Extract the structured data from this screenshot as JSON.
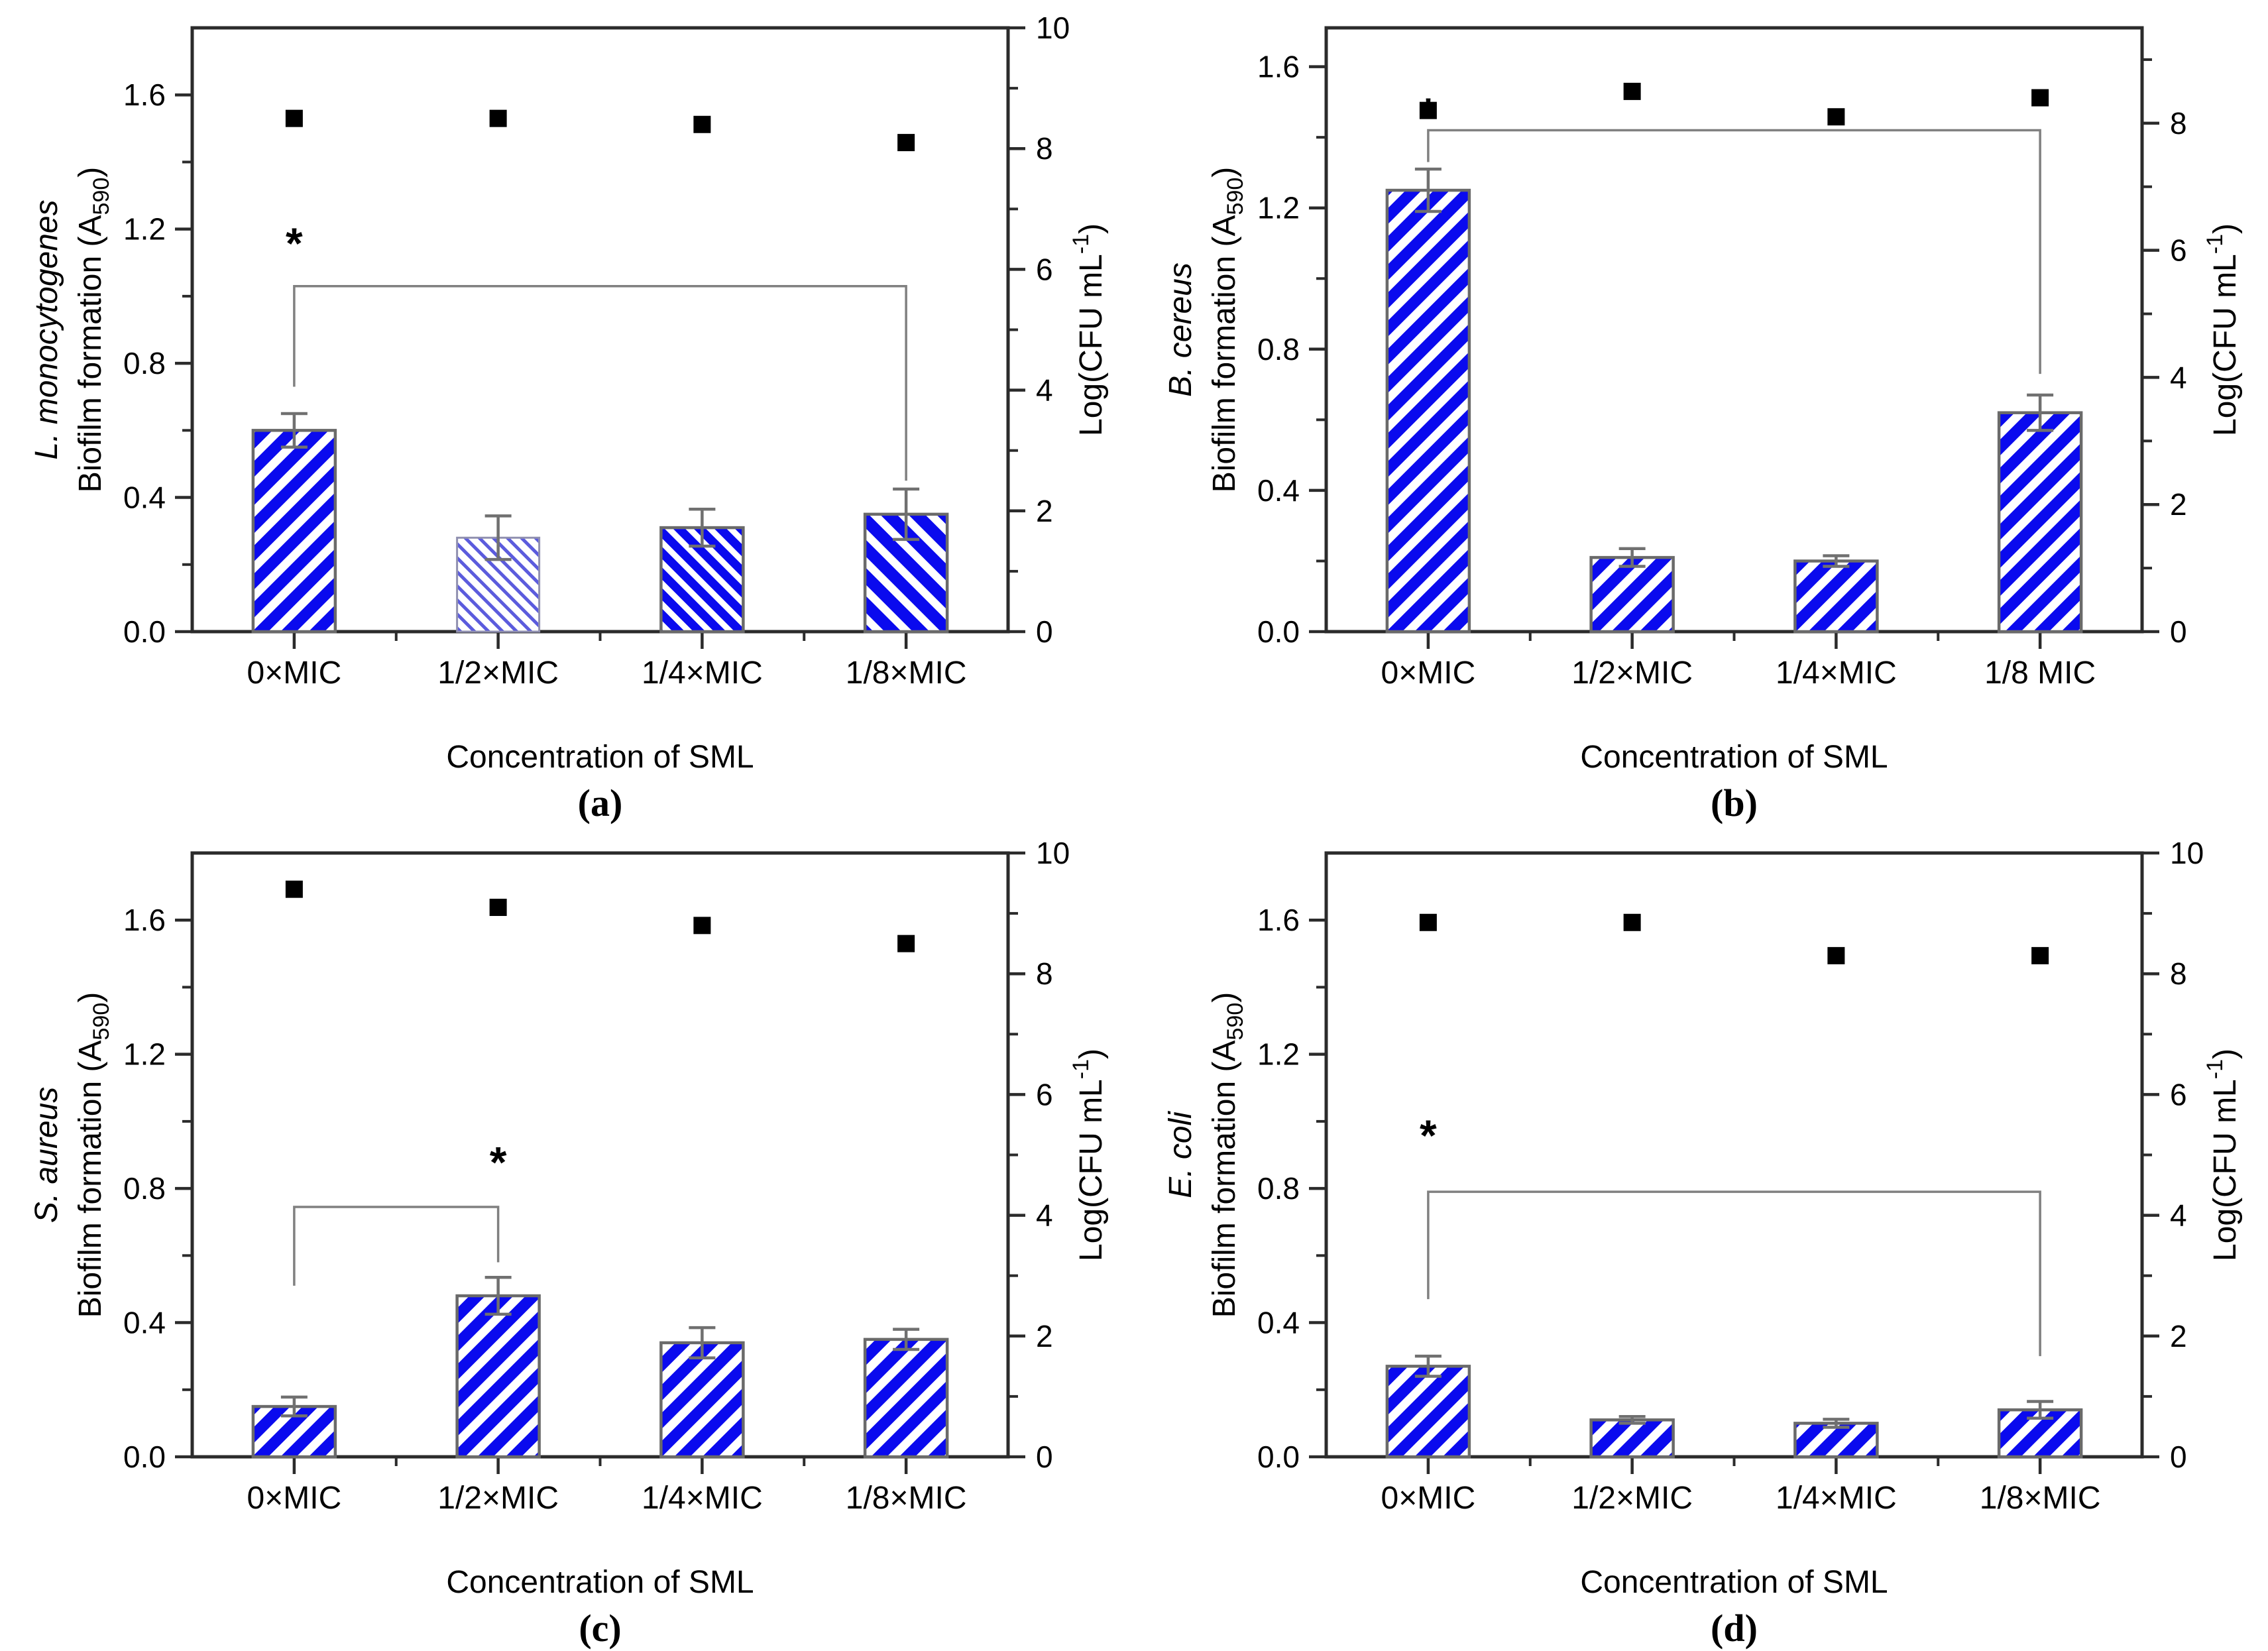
{
  "figure": {
    "background": "#ffffff",
    "x_axis_title": "Concentration of SML",
    "right_axis_label": {
      "pre": "Log(CFU mL",
      "sup": "-1",
      "post": ")"
    },
    "left_axis_label": {
      "pre": "Biofilm formation (A",
      "sub": "590",
      "post": ")"
    }
  },
  "colors": {
    "bar_blue": "#0a0aee",
    "bar_light_blue": "#5b5bdd",
    "hatch_white": "#ffffff",
    "bar_outline": "#6a6a6a",
    "bar_outline_light": "#9090b0",
    "error_bar": "#707070",
    "square_marker": "#000000",
    "axis_line": "#2b2b2b",
    "bracket": "#808080",
    "text": "#000000"
  },
  "chart_data": [
    {
      "type": "bar",
      "panel_label": "(a)",
      "organism": "L. monocytogenes",
      "categories": [
        "0×MIC",
        "1/2×MIC",
        "1/4×MIC",
        "1/8×MIC"
      ],
      "xlabel": "Concentration of SML",
      "ylabel_left": "Biofilm formation (A590)",
      "ylabel_right": "Log(CFU mL-1)",
      "bar_values": [
        0.6,
        0.28,
        0.31,
        0.35
      ],
      "bar_errors": [
        0.05,
        0.065,
        0.055,
        0.075
      ],
      "square_values_log_cfu": [
        8.5,
        8.5,
        8.4,
        8.1
      ],
      "bar_hatches": [
        "fwd-thick",
        "bwd-thin",
        "bwd-med",
        "bwd-thick"
      ],
      "left_axis": {
        "range": [
          0,
          1.8
        ],
        "major_ticks": [
          0.0,
          0.4,
          0.8,
          1.2,
          1.6
        ],
        "minor_ticks": [
          0.2,
          0.6,
          1.0,
          1.4
        ]
      },
      "right_axis": {
        "range": [
          0,
          10
        ],
        "major_ticks": [
          0,
          2,
          4,
          6,
          8,
          10
        ],
        "minor_ticks": [
          1,
          3,
          5,
          7,
          9
        ]
      },
      "significance": {
        "from_cat": 0,
        "to_cat": 3,
        "bar_y": 1.03,
        "left_leg_bottom": 0.73,
        "right_leg_bottom": 0.45,
        "asterisk_cat": 0,
        "asterisk_y": 1.16,
        "label": "*"
      }
    },
    {
      "type": "bar",
      "panel_label": "(b)",
      "organism": "B. cereus",
      "categories": [
        "0×MIC",
        "1/2×MIC",
        "1/4×MIC",
        "1/8 MIC"
      ],
      "xlabel": "Concentration of SML",
      "ylabel_left": "Biofilm formation (A590)",
      "ylabel_right": "Log(CFU mL-1)",
      "bar_values": [
        1.25,
        0.21,
        0.2,
        0.62
      ],
      "bar_errors": [
        0.06,
        0.025,
        0.015,
        0.05
      ],
      "square_values_log_cfu": [
        8.2,
        8.5,
        8.1,
        8.4
      ],
      "bar_hatches": [
        "fwd-thick",
        "fwd-thick",
        "fwd-thick",
        "fwd-thick"
      ],
      "left_axis": {
        "range": [
          0,
          1.71
        ],
        "major_ticks": [
          0.0,
          0.4,
          0.8,
          1.2,
          1.6
        ],
        "minor_ticks": [
          0.2,
          0.6,
          1.0,
          1.4
        ]
      },
      "right_axis": {
        "range": [
          0,
          9.5
        ],
        "major_ticks": [
          0,
          2,
          4,
          6,
          8
        ],
        "minor_ticks": [
          1,
          3,
          5,
          7,
          9
        ]
      },
      "significance": {
        "from_cat": 0,
        "to_cat": 3,
        "bar_y": 1.42,
        "left_leg_bottom": 1.33,
        "right_leg_bottom": 0.73,
        "asterisk_cat": 0,
        "asterisk_y": 1.47,
        "label": "*"
      }
    },
    {
      "type": "bar",
      "panel_label": "(c)",
      "organism": "S. aureus",
      "categories": [
        "0×MIC",
        "1/2×MIC",
        "1/4×MIC",
        "1/8×MIC"
      ],
      "xlabel": "Concentration of SML",
      "ylabel_left": "Biofilm formation (A590)",
      "ylabel_right": "Log(CFU mL-1)",
      "bar_values": [
        0.15,
        0.48,
        0.34,
        0.35
      ],
      "bar_errors": [
        0.028,
        0.055,
        0.045,
        0.03
      ],
      "square_values_log_cfu": [
        9.4,
        9.1,
        8.8,
        8.5
      ],
      "bar_hatches": [
        "fwd-thick",
        "fwd-thick",
        "fwd-thick",
        "fwd-thick"
      ],
      "left_axis": {
        "range": [
          0,
          1.8
        ],
        "major_ticks": [
          0.0,
          0.4,
          0.8,
          1.2,
          1.6
        ],
        "minor_ticks": [
          0.2,
          0.6,
          1.0,
          1.4
        ]
      },
      "right_axis": {
        "range": [
          0,
          10
        ],
        "major_ticks": [
          0,
          2,
          4,
          6,
          8,
          10
        ],
        "minor_ticks": [
          1,
          3,
          5,
          7,
          9
        ]
      },
      "significance": {
        "from_cat": 0,
        "to_cat": 1,
        "bar_y": 0.745,
        "left_leg_bottom": 0.51,
        "right_leg_bottom": 0.58,
        "asterisk_cat": 1,
        "asterisk_y": 0.88,
        "label": "*"
      }
    },
    {
      "type": "bar",
      "panel_label": "(d)",
      "organism": "E. coli",
      "categories": [
        "0×MIC",
        "1/2×MIC",
        "1/4×MIC",
        "1/8×MIC"
      ],
      "xlabel": "Concentration of SML",
      "ylabel_left": "Biofilm formation (A590)",
      "ylabel_right": "Log(CFU mL-1)",
      "bar_values": [
        0.27,
        0.11,
        0.1,
        0.14
      ],
      "bar_errors": [
        0.03,
        0.01,
        0.012,
        0.025
      ],
      "square_values_log_cfu": [
        8.85,
        8.85,
        8.3,
        8.3
      ],
      "bar_hatches": [
        "fwd-thick",
        "fwd-thick",
        "fwd-thick",
        "fwd-thick"
      ],
      "left_axis": {
        "range": [
          0,
          1.8
        ],
        "major_ticks": [
          0.0,
          0.4,
          0.8,
          1.2,
          1.6
        ],
        "minor_ticks": [
          0.2,
          0.6,
          1.0,
          1.4
        ]
      },
      "right_axis": {
        "range": [
          0,
          10
        ],
        "major_ticks": [
          0,
          2,
          4,
          6,
          8,
          10
        ],
        "minor_ticks": [
          1,
          3,
          5,
          7,
          9
        ]
      },
      "significance": {
        "from_cat": 0,
        "to_cat": 3,
        "bar_y": 0.79,
        "left_leg_bottom": 0.47,
        "right_leg_bottom": 0.3,
        "asterisk_cat": 0,
        "asterisk_y": 0.96,
        "label": "*"
      }
    }
  ]
}
